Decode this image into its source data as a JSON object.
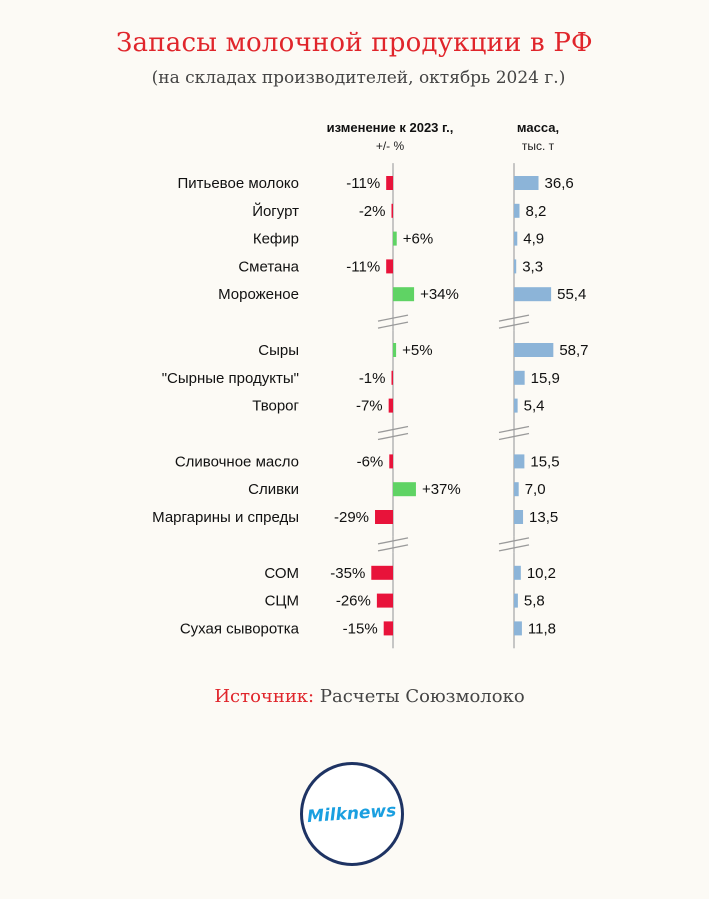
{
  "title": "Запасы молочной продукции в РФ",
  "subtitle": "(на складах производителей, октябрь 2024 г.)",
  "source_label": "Источник:",
  "source_text": "Расчеты Союзмолоко",
  "logo_text": "Milknews",
  "colors": {
    "negative": "#e8133a",
    "positive": "#5fd364",
    "mass": "#8cb4d8",
    "title": "#e0252b"
  },
  "chart_data": {
    "type": "bar",
    "headers": {
      "change_line1": "изменение к 2023 г.,",
      "change_line2": "+/- %",
      "mass_line1": "масса,",
      "mass_line2": "тыс. т"
    },
    "groups": [
      [
        {
          "category": "Питьевое молоко",
          "change": -11,
          "change_label": "-11%",
          "mass": 36.6,
          "mass_label": "36,6"
        },
        {
          "category": "Йогурт",
          "change": -2,
          "change_label": "-2%",
          "mass": 8.2,
          "mass_label": "8,2"
        },
        {
          "category": "Кефир",
          "change": 6,
          "change_label": "+6%",
          "mass": 4.9,
          "mass_label": "4,9"
        },
        {
          "category": "Сметана",
          "change": -11,
          "change_label": "-11%",
          "mass": 3.3,
          "mass_label": "3,3"
        },
        {
          "category": "Мороженое",
          "change": 34,
          "change_label": "+34%",
          "mass": 55.4,
          "mass_label": "55,4"
        }
      ],
      [
        {
          "category": "Сыры",
          "change": 5,
          "change_label": "+5%",
          "mass": 58.7,
          "mass_label": "58,7"
        },
        {
          "category": "\"Сырные продукты\"",
          "change": -1,
          "change_label": "-1%",
          "mass": 15.9,
          "mass_label": "15,9"
        },
        {
          "category": "Творог",
          "change": -7,
          "change_label": "-7%",
          "mass": 5.4,
          "mass_label": "5,4"
        }
      ],
      [
        {
          "category": "Сливочное масло",
          "change": -6,
          "change_label": "-6%",
          "mass": 15.5,
          "mass_label": "15,5"
        },
        {
          "category": "Сливки",
          "change": 37,
          "change_label": "+37%",
          "mass": 7.0,
          "mass_label": "7,0"
        },
        {
          "category": "Маргарины и спреды",
          "change": -29,
          "change_label": "-29%",
          "mass": 13.5,
          "mass_label": "13,5"
        }
      ],
      [
        {
          "category": "СОМ",
          "change": -35,
          "change_label": "-35%",
          "mass": 10.2,
          "mass_label": "10,2"
        },
        {
          "category": "СЦМ",
          "change": -26,
          "change_label": "-26%",
          "mass": 5.8,
          "mass_label": "5,8"
        },
        {
          "category": "Сухая сыворотка",
          "change": -15,
          "change_label": "-15%",
          "mass": 11.8,
          "mass_label": "11,8"
        }
      ]
    ]
  }
}
